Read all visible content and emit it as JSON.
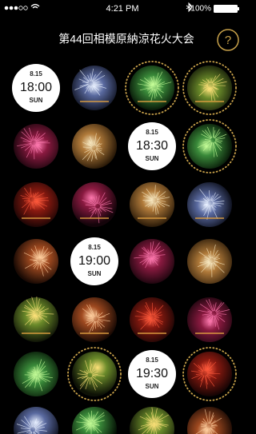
{
  "status_bar": {
    "time": "4:21 PM",
    "battery": "100%"
  },
  "header": {
    "title": "第44回相模原納涼花火大会",
    "help": "?"
  },
  "timeslots": [
    {
      "date": "8.15",
      "time": "18:00",
      "day": "SUN"
    },
    {
      "date": "8.15",
      "time": "18:30",
      "day": "SUN"
    },
    {
      "date": "8.15",
      "time": "19:00",
      "day": "SUN"
    },
    {
      "date": "8.15",
      "time": "19:30",
      "day": "SUN"
    }
  ]
}
